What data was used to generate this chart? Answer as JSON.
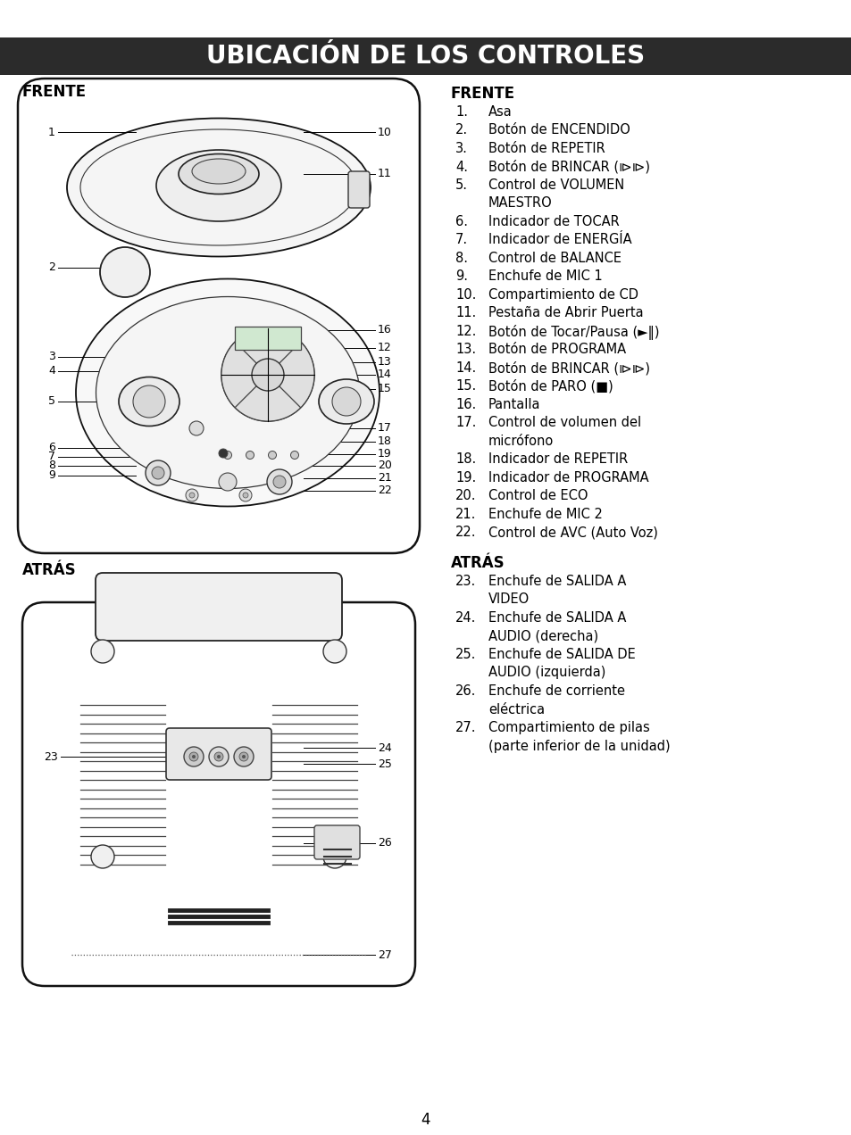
{
  "title": "UBICACIÓN DE LOS CONTROLES",
  "title_bg": "#2b2b2b",
  "title_color": "#ffffff",
  "title_fontsize": 20,
  "bg_color": "#ffffff",
  "text_color": "#000000",
  "right_col_frente_title": "FRENTE",
  "right_col_atras_title": "ATRÁS",
  "frente_items": [
    [
      "1.",
      "Asa"
    ],
    [
      "2.",
      "Botón de ENCENDIDO"
    ],
    [
      "3.",
      "Botón de REPETIR"
    ],
    [
      "4.",
      "Botón de BRINCAR (⧐⧐)"
    ],
    [
      "5.",
      "Control de VOLUMEN"
    ],
    [
      "",
      "MAESTRO"
    ],
    [
      "6.",
      "Indicador de TOCAR"
    ],
    [
      "7.",
      "Indicador de ENERGÍA"
    ],
    [
      "8.",
      "Control de BALANCE"
    ],
    [
      "9.",
      "Enchufe de MIC 1"
    ],
    [
      "10.",
      "Compartimiento de CD"
    ],
    [
      "11.",
      "Pestaña de Abrir Puerta"
    ],
    [
      "12.",
      "Botón de Tocar/Pausa (►‖)"
    ],
    [
      "13.",
      "Botón de PROGRAMA"
    ],
    [
      "14.",
      "Botón de BRINCAR (⧐⧐)"
    ],
    [
      "15.",
      "Botón de PARO (■)"
    ],
    [
      "16.",
      "Pantalla"
    ],
    [
      "17.",
      "Control de volumen del"
    ],
    [
      "",
      "micrófono"
    ],
    [
      "18.",
      "Indicador de REPETIR"
    ],
    [
      "19.",
      "Indicador de PROGRAMA"
    ],
    [
      "20.",
      "Control de ECO"
    ],
    [
      "21.",
      "Enchufe de MIC 2"
    ],
    [
      "22.",
      "Control de AVC (Auto Voz)"
    ]
  ],
  "atras_items": [
    [
      "23.",
      "Enchufe de SALIDA A"
    ],
    [
      "",
      "VIDEO"
    ],
    [
      "24.",
      "Enchufe de SALIDA A"
    ],
    [
      "",
      "AUDIO (derecha)"
    ],
    [
      "25.",
      "Enchufe de SALIDA DE"
    ],
    [
      "",
      "AUDIO (izquierda)"
    ],
    [
      "26.",
      "Enchufe de corriente"
    ],
    [
      "",
      "eléctrica"
    ],
    [
      "27.",
      "Compartimiento de pilas"
    ],
    [
      "",
      "(parte inferior de la unidad)"
    ]
  ],
  "page_number": "4"
}
